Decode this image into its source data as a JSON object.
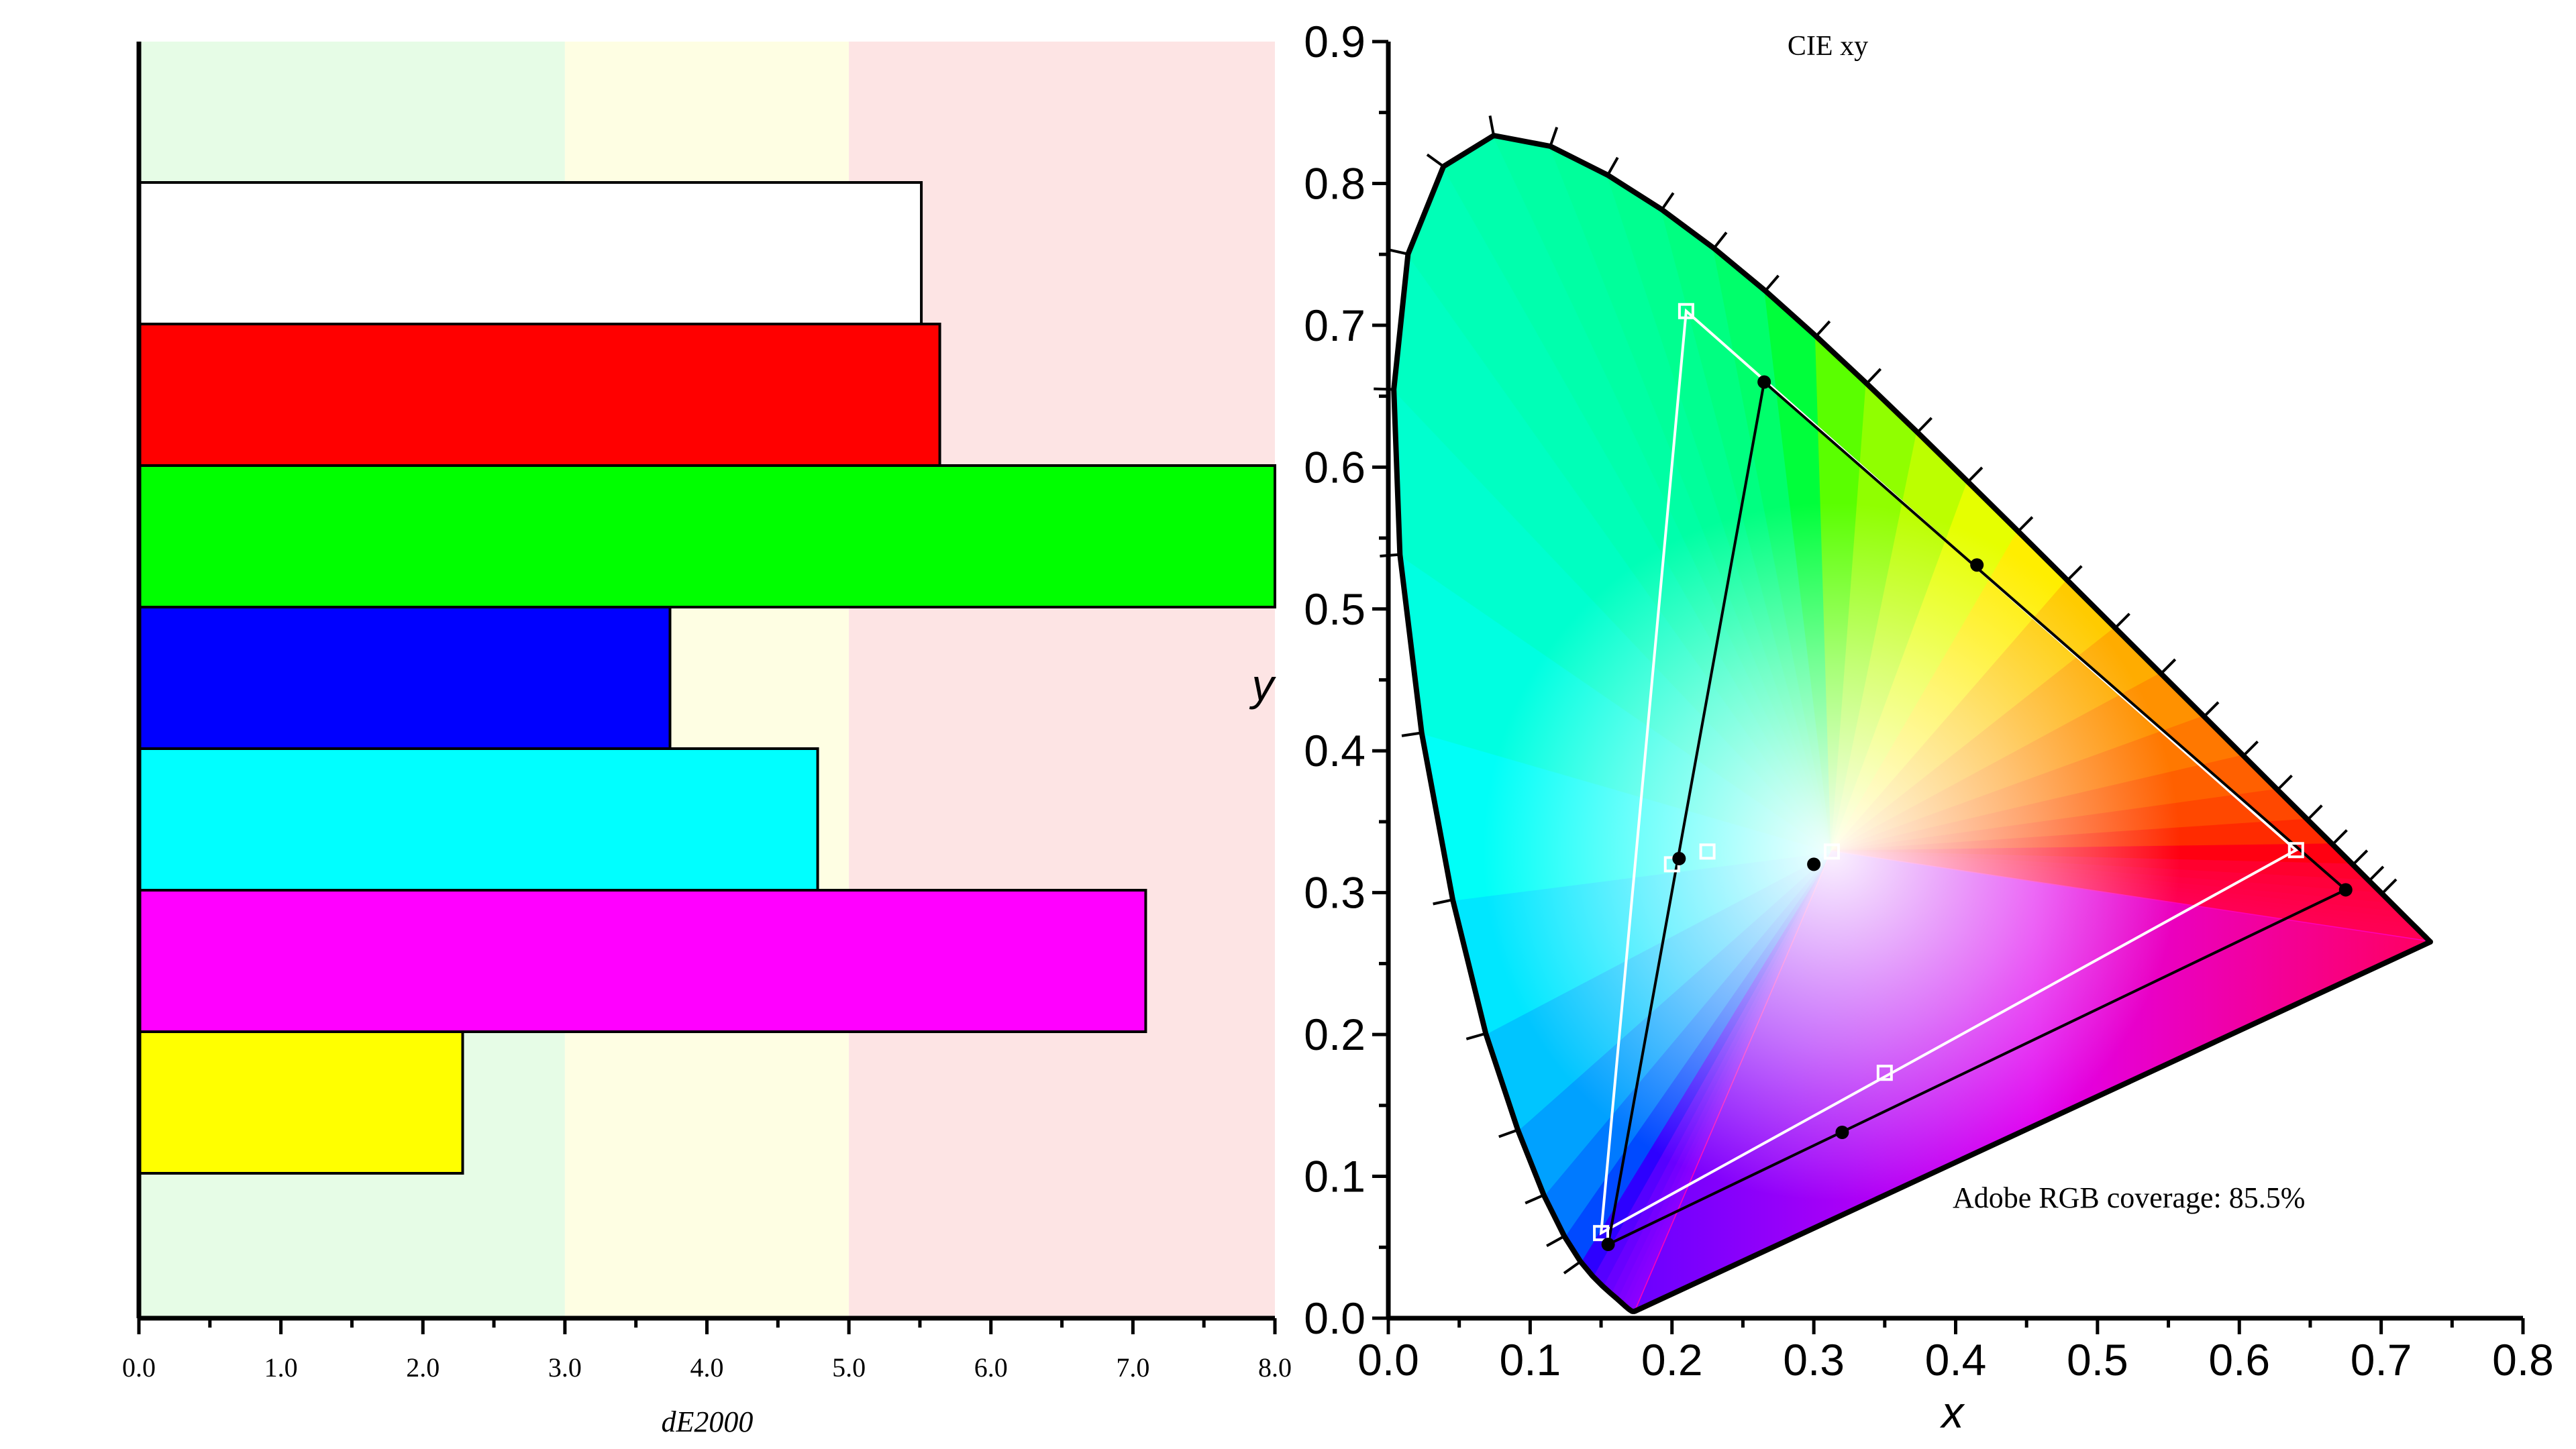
{
  "chart_data": [
    {
      "type": "bar",
      "orientation": "horizontal",
      "xlabel": "dE2000",
      "ylabel": "",
      "xlim": [
        0,
        8
      ],
      "x_ticks": [
        "0.0",
        "1.0",
        "2.0",
        "3.0",
        "4.0",
        "5.0",
        "6.0",
        "7.0",
        "8.0"
      ],
      "grid": false,
      "bands": [
        {
          "from": 0,
          "to": 3,
          "color": "#e6fce6"
        },
        {
          "from": 3,
          "to": 5,
          "color": "#fefee3"
        },
        {
          "from": 5,
          "to": 8,
          "color": "#fde4e4"
        }
      ],
      "categories": [
        "white",
        "red",
        "green",
        "blue",
        "cyan",
        "magenta",
        "yellow"
      ],
      "bar_colors": [
        "#ffffff",
        "#ff0000",
        "#00ff00",
        "#0000ff",
        "#00ffff",
        "#ff00ff",
        "#ffff00"
      ],
      "values": [
        5.51,
        5.64,
        8.0,
        3.74,
        4.78,
        7.09,
        2.28
      ]
    },
    {
      "type": "scatter",
      "subtype": "cie-xy-chromaticity",
      "title": "CIE xy",
      "xlabel": "x",
      "ylabel": "y",
      "xlim": [
        0,
        0.8
      ],
      "ylim": [
        0,
        0.9
      ],
      "x_ticks": [
        "0.0",
        "0.1",
        "0.2",
        "0.3",
        "0.4",
        "0.5",
        "0.6",
        "0.7",
        "0.8"
      ],
      "y_ticks": [
        "0.0",
        "0.1",
        "0.2",
        "0.3",
        "0.4",
        "0.5",
        "0.6",
        "0.7",
        "0.8",
        "0.9"
      ],
      "annotation": "Adobe RGB coverage: 85.5%",
      "series": [
        {
          "marker": "square-open",
          "color": "#ffffff",
          "gamut": [
            [
              0.64,
              0.33
            ],
            [
              0.21,
              0.71
            ],
            [
              0.15,
              0.06
            ]
          ],
          "points": [
            [
              0.64,
              0.33
            ],
            [
              0.21,
              0.71
            ],
            [
              0.15,
              0.06
            ],
            [
              0.225,
              0.329
            ],
            [
              0.2,
              0.32
            ],
            [
              0.35,
              0.173
            ],
            [
              0.3127,
              0.329
            ]
          ]
        },
        {
          "marker": "dot",
          "color": "#000000",
          "gamut": [
            [
              0.675,
              0.302
            ],
            [
              0.265,
              0.66
            ],
            [
              0.155,
              0.052
            ]
          ],
          "points": [
            [
              0.675,
              0.302
            ],
            [
              0.265,
              0.66
            ],
            [
              0.155,
              0.052
            ],
            [
              0.415,
              0.531
            ],
            [
              0.205,
              0.324
            ],
            [
              0.32,
              0.131
            ],
            [
              0.3,
              0.32
            ]
          ]
        }
      ],
      "spectral_locus": [
        [
          0.1741,
          0.005
        ],
        [
          0.1738,
          0.0049
        ],
        [
          0.1736,
          0.0049
        ],
        [
          0.1733,
          0.0048
        ],
        [
          0.173,
          0.0048
        ],
        [
          0.1726,
          0.0048
        ],
        [
          0.1721,
          0.0048
        ],
        [
          0.1714,
          0.0051
        ],
        [
          0.1703,
          0.0058
        ],
        [
          0.1689,
          0.0069
        ],
        [
          0.1669,
          0.0086
        ],
        [
          0.1644,
          0.0109
        ],
        [
          0.1611,
          0.0138
        ],
        [
          0.1566,
          0.0177
        ],
        [
          0.151,
          0.0227
        ],
        [
          0.144,
          0.0297
        ],
        [
          0.1355,
          0.0399
        ],
        [
          0.1241,
          0.0578
        ],
        [
          0.1096,
          0.0868
        ],
        [
          0.0913,
          0.1327
        ],
        [
          0.0687,
          0.2007
        ],
        [
          0.0454,
          0.295
        ],
        [
          0.0235,
          0.4127
        ],
        [
          0.0082,
          0.5384
        ],
        [
          0.0039,
          0.6548
        ],
        [
          0.0139,
          0.7502
        ],
        [
          0.0389,
          0.812
        ],
        [
          0.0743,
          0.8338
        ],
        [
          0.1142,
          0.8262
        ],
        [
          0.1547,
          0.8059
        ],
        [
          0.1929,
          0.7816
        ],
        [
          0.2296,
          0.7543
        ],
        [
          0.2658,
          0.7243
        ],
        [
          0.3016,
          0.6923
        ],
        [
          0.3373,
          0.6589
        ],
        [
          0.3731,
          0.6245
        ],
        [
          0.4087,
          0.5896
        ],
        [
          0.4441,
          0.5547
        ],
        [
          0.4788,
          0.5202
        ],
        [
          0.5125,
          0.4866
        ],
        [
          0.5448,
          0.4544
        ],
        [
          0.5752,
          0.4242
        ],
        [
          0.6029,
          0.3965
        ],
        [
          0.627,
          0.3725
        ],
        [
          0.6482,
          0.3514
        ],
        [
          0.6658,
          0.334
        ],
        [
          0.6801,
          0.3197
        ],
        [
          0.6915,
          0.3083
        ],
        [
          0.7006,
          0.2993
        ],
        [
          0.7079,
          0.292
        ],
        [
          0.714,
          0.2859
        ],
        [
          0.719,
          0.2809
        ],
        [
          0.723,
          0.277
        ],
        [
          0.726,
          0.274
        ],
        [
          0.7283,
          0.2717
        ],
        [
          0.73,
          0.27
        ],
        [
          0.7311,
          0.2689
        ],
        [
          0.732,
          0.268
        ],
        [
          0.7327,
          0.2673
        ],
        [
          0.7334,
          0.2666
        ],
        [
          0.734,
          0.266
        ],
        [
          0.7344,
          0.2656
        ],
        [
          0.7346,
          0.2654
        ],
        [
          0.7347,
          0.2653
        ]
      ]
    }
  ]
}
